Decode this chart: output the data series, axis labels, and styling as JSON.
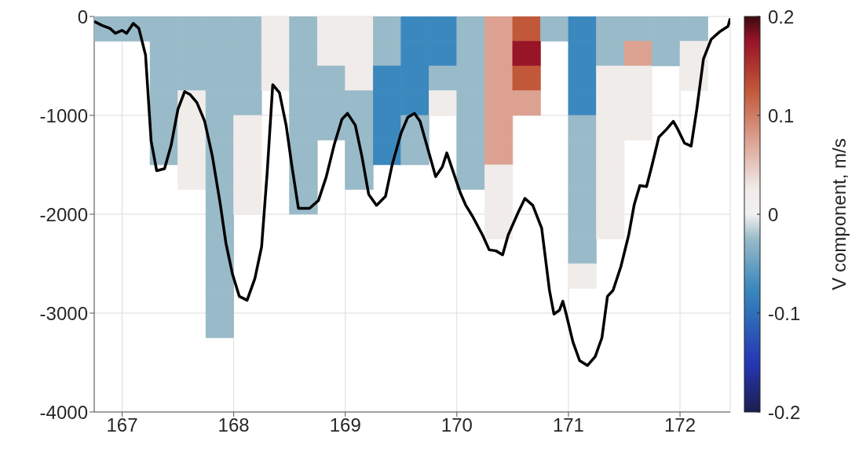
{
  "chart_data": {
    "type": "scatter",
    "clabel": "V component, m/s",
    "xlim": [
      166.75,
      172.45
    ],
    "xticks": [
      167,
      168,
      169,
      170,
      171,
      172
    ],
    "ylim": [
      -4000,
      0
    ],
    "yticks": [
      -4000,
      -3000,
      -2000,
      -1000,
      0
    ],
    "clim": [
      -0.2,
      0.2
    ],
    "cticks": [
      -0.2,
      -0.1,
      0,
      0.1,
      0.2
    ],
    "grid": true,
    "series": [
      {
        "marker": "square",
        "colors": [
          "#99bac8",
          "#99bac8",
          "#99bac8",
          "#99bac8",
          "#99bac8",
          "#99bac8",
          "#99bac8",
          "#99bac8",
          "#99bac8",
          "#99bac8",
          "#99bac8",
          "#f0ecea",
          "#f0ecea",
          "#f0ecea",
          "#f0ecea",
          "#99bac8",
          "#99bac8",
          "#99bac8",
          "#99bac8",
          "#99bac8",
          "#99bac8",
          "#99bac8",
          "#99bac8",
          "#99bac8",
          "#99bac8",
          "#99bac8",
          "#99bac8",
          "#99bac8",
          "#99bac8",
          "#99bac8",
          "#99bac8",
          "#99bac8",
          "#f0ecea",
          "#f0ecea",
          "#f0ecea",
          "#f0ecea",
          "#f0ecea",
          "#f0ecea",
          "#f0ecea",
          "#99bac8",
          "#99bac8",
          "#99bac8",
          "#99bac8",
          "#99bac8",
          "#99bac8",
          "#99bac8",
          "#99bac8",
          "#f0ecea",
          "#f0ecea",
          "#99bac8",
          "#99bac8",
          "#99bac8",
          "#f0ecea",
          "#f0ecea",
          "#f0ecea",
          "#99bac8",
          "#99bac8",
          "#99bac8",
          "#99bac8",
          "#99bac8",
          "#99bac8",
          "#3a88be",
          "#3a88be",
          "#3a88be",
          "#3a88be",
          "#3a88be",
          "#3a88be",
          "#3a88be",
          "#3a88be",
          "#99bac8",
          "#99bac8",
          "#3a88be",
          "#3a88be",
          "#99bac8",
          "#f0ecea",
          "#99bac8",
          "#99bac8",
          "#99bac8",
          "#99bac8",
          "#99bac8",
          "#99bac8",
          "#99bac8",
          "#dca190",
          "#dca190",
          "#dca190",
          "#dca190",
          "#dca190",
          "#dca190",
          "#f0ecea",
          "#f0ecea",
          "#f0ecea",
          "#c2583a",
          "#981427",
          "#c2583a",
          "#dca190",
          "#99bac8",
          "#3a88be",
          "#3a88be",
          "#3a88be",
          "#3a88be",
          "#99bac8",
          "#99bac8",
          "#99bac8",
          "#99bac8",
          "#99bac8",
          "#99bac8",
          "#f0ecea",
          "#99bac8",
          "#99bac8",
          "#f0ecea",
          "#f0ecea",
          "#f0ecea",
          "#f0ecea",
          "#f0ecea",
          "#f0ecea",
          "#f0ecea",
          "#99bac8",
          "#dca190",
          "#f0ecea",
          "#f0ecea",
          "#f0ecea",
          "#99bac8",
          "#99bac8",
          "#99bac8",
          "#f0ecea",
          "#f0ecea"
        ],
        "x": [
          166.875,
          167.125,
          167.375,
          167.375,
          167.375,
          167.375,
          167.375,
          167.375,
          167.625,
          167.625,
          167.625,
          167.625,
          167.625,
          167.625,
          167.625,
          167.875,
          167.875,
          167.875,
          167.875,
          167.875,
          167.875,
          167.875,
          167.875,
          167.875,
          167.875,
          167.875,
          167.875,
          167.875,
          168.125,
          168.125,
          168.125,
          168.125,
          168.125,
          168.125,
          168.125,
          168.125,
          168.375,
          168.375,
          168.375,
          168.625,
          168.625,
          168.625,
          168.625,
          168.625,
          168.625,
          168.625,
          168.625,
          168.875,
          168.875,
          168.875,
          168.875,
          168.875,
          169.125,
          169.125,
          169.125,
          169.125,
          169.125,
          169.125,
          169.125,
          169.375,
          169.375,
          169.375,
          169.375,
          169.375,
          169.375,
          169.625,
          169.625,
          169.625,
          169.625,
          169.625,
          169.625,
          169.875,
          169.875,
          169.875,
          169.875,
          170.125,
          170.125,
          170.125,
          170.125,
          170.125,
          170.125,
          170.125,
          170.375,
          170.375,
          170.375,
          170.375,
          170.375,
          170.375,
          170.375,
          170.375,
          170.375,
          170.625,
          170.625,
          170.625,
          170.625,
          170.875,
          171.125,
          171.125,
          171.125,
          171.125,
          171.125,
          171.125,
          171.125,
          171.125,
          171.125,
          171.125,
          171.125,
          171.375,
          171.375,
          171.375,
          171.375,
          171.375,
          171.375,
          171.375,
          171.375,
          171.375,
          171.625,
          171.625,
          171.625,
          171.625,
          171.625,
          171.875,
          171.875,
          172.125,
          172.125,
          172.125
        ],
        "values": [
          -125,
          -125,
          -125,
          -375,
          -625,
          -875,
          -1125,
          -1375,
          -125,
          -375,
          -625,
          -875,
          -1125,
          -1375,
          -1625,
          -125,
          -375,
          -625,
          -875,
          -1125,
          -1375,
          -1625,
          -1875,
          -2125,
          -2375,
          -2625,
          -2875,
          -3125,
          -125,
          -375,
          -625,
          -875,
          -1125,
          -1375,
          -1625,
          -1875,
          -125,
          -375,
          -625,
          -125,
          -375,
          -625,
          -875,
          -1125,
          -1375,
          -1625,
          -1875,
          -125,
          -375,
          -625,
          -875,
          -1125,
          -125,
          -375,
          -625,
          -875,
          -1125,
          -1375,
          -1625,
          -125,
          -375,
          -625,
          -875,
          -1125,
          -1375,
          -125,
          -375,
          -625,
          -875,
          -1125,
          -1375,
          -125,
          -375,
          -625,
          -875,
          -125,
          -375,
          -625,
          -875,
          -1125,
          -1375,
          -1625,
          -125,
          -375,
          -625,
          -875,
          -1125,
          -1375,
          -1625,
          -1875,
          -2125,
          -125,
          -375,
          -625,
          -875,
          -125,
          -125,
          -375,
          -625,
          -875,
          -1125,
          -1375,
          -1625,
          -1875,
          -2125,
          -2375,
          -2625,
          -125,
          -375,
          -625,
          -875,
          -1125,
          -1375,
          -1625,
          -1875,
          -2125,
          -125,
          -375,
          -625,
          -875,
          -1125,
          -125,
          -375,
          -125,
          -375,
          -625
        ],
        "cvalues": [
          -0.025,
          -0.025,
          -0.025,
          -0.025,
          -0.025,
          -0.025,
          -0.025,
          -0.025,
          -0.025,
          -0.025,
          -0.025,
          0.025,
          0.025,
          0.025,
          0.025,
          -0.025,
          -0.025,
          -0.025,
          -0.025,
          -0.025,
          -0.025,
          -0.025,
          -0.025,
          -0.025,
          -0.025,
          -0.025,
          -0.025,
          -0.025,
          -0.025,
          -0.025,
          -0.025,
          -0.025,
          0.025,
          0.025,
          0.025,
          0.025,
          0.025,
          0.025,
          0.025,
          -0.025,
          -0.025,
          -0.025,
          -0.025,
          -0.025,
          -0.025,
          -0.025,
          -0.025,
          0.025,
          0.025,
          -0.025,
          -0.025,
          -0.025,
          0.025,
          0.025,
          0.025,
          -0.025,
          -0.025,
          -0.025,
          -0.025,
          -0.025,
          -0.025,
          -0.075,
          -0.075,
          -0.075,
          -0.075,
          -0.075,
          -0.075,
          -0.075,
          -0.075,
          -0.025,
          -0.025,
          -0.075,
          -0.075,
          -0.025,
          0.025,
          -0.025,
          -0.025,
          -0.025,
          -0.025,
          -0.025,
          -0.025,
          -0.025,
          0.075,
          0.075,
          0.075,
          0.075,
          0.075,
          0.075,
          0.025,
          0.025,
          0.025,
          0.125,
          0.175,
          0.125,
          0.075,
          -0.025,
          -0.075,
          -0.075,
          -0.075,
          -0.075,
          -0.025,
          -0.025,
          -0.025,
          -0.025,
          -0.025,
          -0.025,
          0.025,
          -0.025,
          -0.025,
          0.025,
          0.025,
          0.025,
          0.025,
          0.025,
          0.025,
          0.025,
          -0.025,
          0.075,
          0.025,
          0.025,
          0.025,
          -0.025,
          -0.025,
          -0.025,
          0.025,
          0.025
        ]
      },
      {
        "type": "line",
        "marker": "none",
        "line_style": "solid",
        "color": "#000000",
        "x": [
          166.75,
          166.82,
          166.89,
          166.94,
          167.0,
          167.04,
          167.1,
          167.15,
          167.21,
          167.26,
          167.31,
          167.38,
          167.44,
          167.5,
          167.56,
          167.61,
          167.67,
          167.74,
          167.81,
          167.88,
          167.93,
          167.99,
          168.05,
          168.12,
          168.19,
          168.25,
          168.3,
          168.35,
          168.41,
          168.47,
          168.52,
          168.58,
          168.68,
          168.76,
          168.83,
          168.9,
          168.97,
          169.02,
          169.09,
          169.15,
          169.21,
          169.28,
          169.36,
          169.42,
          169.5,
          169.56,
          169.62,
          169.67,
          169.74,
          169.81,
          169.87,
          169.91,
          169.97,
          170.03,
          170.08,
          170.14,
          170.23,
          170.29,
          170.35,
          170.41,
          170.46,
          170.55,
          170.61,
          170.68,
          170.76,
          170.83,
          170.87,
          170.92,
          170.95,
          170.98,
          171.04,
          171.1,
          171.17,
          171.24,
          171.3,
          171.35,
          171.4,
          171.47,
          171.54,
          171.59,
          171.64,
          171.7,
          171.75,
          171.81,
          171.88,
          171.94,
          171.98,
          172.04,
          172.1,
          172.15,
          172.21,
          172.28,
          172.36,
          172.43,
          172.45
        ],
        "values": [
          -50,
          -90,
          -120,
          -170,
          -140,
          -170,
          -70,
          -120,
          -390,
          -1260,
          -1560,
          -1540,
          -1300,
          -940,
          -760,
          -790,
          -870,
          -1060,
          -1420,
          -1900,
          -2290,
          -2610,
          -2830,
          -2870,
          -2650,
          -2330,
          -1580,
          -690,
          -770,
          -1100,
          -1500,
          -1940,
          -1940,
          -1860,
          -1620,
          -1300,
          -1040,
          -980,
          -1100,
          -1420,
          -1800,
          -1910,
          -1820,
          -1500,
          -1180,
          -1020,
          -980,
          -1060,
          -1340,
          -1620,
          -1520,
          -1380,
          -1580,
          -1780,
          -1910,
          -2020,
          -2210,
          -2360,
          -2370,
          -2410,
          -2210,
          -1980,
          -1840,
          -1910,
          -2140,
          -2770,
          -3010,
          -2970,
          -2880,
          -3010,
          -3290,
          -3480,
          -3530,
          -3440,
          -3250,
          -2830,
          -2770,
          -2530,
          -2210,
          -1900,
          -1710,
          -1720,
          -1500,
          -1220,
          -1140,
          -1060,
          -1140,
          -1280,
          -1310,
          -940,
          -430,
          -230,
          -150,
          -100,
          -20
        ]
      }
    ]
  }
}
